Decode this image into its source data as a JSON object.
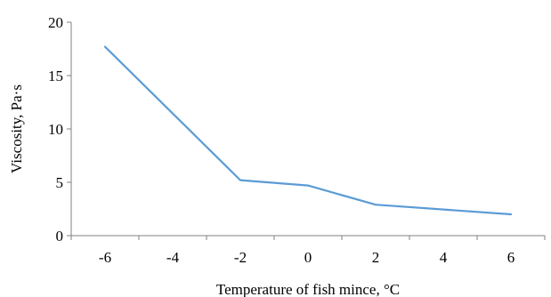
{
  "chart_data": {
    "type": "line",
    "title": "",
    "xlabel": "Temperature of fish mince, °C",
    "ylabel": "Viscosity, Pa·s",
    "x": [
      -6,
      -2,
      0,
      2,
      6
    ],
    "series": [
      {
        "values": [
          17.7,
          5.2,
          4.7,
          2.9,
          2.0
        ]
      }
    ],
    "xlim": [
      -7,
      7
    ],
    "ylim": [
      0,
      20
    ],
    "xticks": [
      -6,
      -4,
      -2,
      0,
      2,
      4,
      6
    ],
    "yticks": [
      0,
      5,
      10,
      15,
      20
    ],
    "grid": false,
    "legend": "none",
    "colors": {
      "series": "#5B9BD5",
      "axis": "#808080"
    }
  }
}
